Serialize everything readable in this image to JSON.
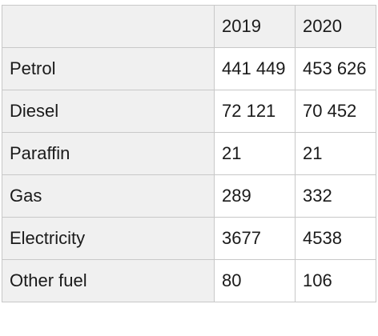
{
  "table": {
    "headers": [
      "",
      "2019",
      "2020"
    ],
    "rows": [
      {
        "label": "Petrol",
        "v2019": "441 449",
        "v2020": "453 626"
      },
      {
        "label": "Diesel",
        "v2019": "72 121",
        "v2020": "70 452"
      },
      {
        "label": "Paraffin",
        "v2019": "21",
        "v2020": "21"
      },
      {
        "label": "Gas",
        "v2019": "289",
        "v2020": "332"
      },
      {
        "label": "Electricity",
        "v2019": "3677",
        "v2020": "4538"
      },
      {
        "label": "Other fuel",
        "v2019": "80",
        "v2020": "106"
      }
    ]
  }
}
